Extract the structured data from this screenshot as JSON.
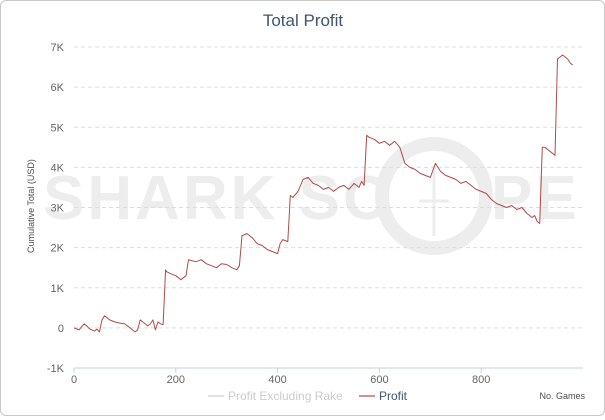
{
  "chart_data": {
    "type": "line",
    "title": "Total Profit",
    "xlabel": "No. Games",
    "ylabel": "Cumulative Total (USD)",
    "xlim": [
      0,
      1000
    ],
    "ylim": [
      -1000,
      7000
    ],
    "x_ticks": [
      0,
      200,
      400,
      600,
      800
    ],
    "x_tick_labels": [
      "0",
      "200",
      "400",
      "600",
      "800"
    ],
    "y_ticks": [
      -1000,
      0,
      1000,
      2000,
      3000,
      4000,
      5000,
      6000,
      7000
    ],
    "y_tick_labels": [
      "-1K",
      "0",
      "1K",
      "2K",
      "3K",
      "4K",
      "5K",
      "6K",
      "7K"
    ],
    "grid": true,
    "legend_position": "bottom-center",
    "watermark": "SHARK SCOPE",
    "series": [
      {
        "name": "Profit Excluding Rake",
        "color": "#cccccc",
        "visible": false,
        "x": [],
        "y": []
      },
      {
        "name": "Profit",
        "color": "#b24a4a",
        "visible": true,
        "x": [
          0,
          10,
          15,
          20,
          25,
          30,
          35,
          40,
          45,
          50,
          55,
          60,
          65,
          70,
          80,
          90,
          100,
          110,
          115,
          120,
          125,
          130,
          135,
          140,
          145,
          150,
          155,
          160,
          165,
          170,
          175,
          180,
          182,
          190,
          200,
          210,
          220,
          225,
          230,
          240,
          250,
          260,
          270,
          280,
          290,
          300,
          310,
          320,
          325,
          330,
          340,
          350,
          360,
          370,
          380,
          390,
          400,
          405,
          410,
          420,
          425,
          430,
          440,
          450,
          460,
          470,
          480,
          490,
          500,
          510,
          520,
          530,
          540,
          550,
          560,
          565,
          570,
          575,
          580,
          590,
          600,
          610,
          620,
          630,
          640,
          650,
          660,
          670,
          680,
          690,
          700,
          710,
          720,
          730,
          740,
          750,
          760,
          770,
          780,
          790,
          800,
          810,
          820,
          830,
          840,
          850,
          860,
          870,
          880,
          890,
          900,
          905,
          910,
          915,
          920,
          925,
          930,
          940,
          945,
          950,
          955,
          960,
          965,
          970,
          975,
          980
        ],
        "y": [
          0,
          -50,
          30,
          100,
          50,
          -20,
          -50,
          -80,
          -30,
          -100,
          200,
          300,
          250,
          200,
          150,
          120,
          100,
          0,
          -50,
          -100,
          -50,
          200,
          150,
          100,
          50,
          100,
          200,
          -50,
          150,
          100,
          80,
          1450,
          1400,
          1350,
          1300,
          1200,
          1300,
          1700,
          1680,
          1650,
          1700,
          1600,
          1550,
          1500,
          1600,
          1580,
          1500,
          1450,
          1550,
          2300,
          2350,
          2250,
          2100,
          2050,
          1950,
          1900,
          1850,
          2100,
          2200,
          2150,
          3300,
          3250,
          3400,
          3700,
          3750,
          3600,
          3550,
          3450,
          3500,
          3400,
          3500,
          3550,
          3450,
          3600,
          3500,
          3650,
          3550,
          4800,
          4750,
          4700,
          4600,
          4650,
          4550,
          4650,
          4500,
          4100,
          4000,
          3950,
          3850,
          3800,
          3750,
          4100,
          3900,
          3800,
          3750,
          3700,
          3600,
          3650,
          3550,
          3450,
          3400,
          3350,
          3200,
          3100,
          3050,
          3000,
          3050,
          2950,
          3000,
          2850,
          2750,
          2800,
          2650,
          2600,
          4500,
          4500,
          4450,
          4350,
          4300,
          6700,
          6750,
          6800,
          6750,
          6700,
          6600,
          6550
        ]
      }
    ]
  }
}
